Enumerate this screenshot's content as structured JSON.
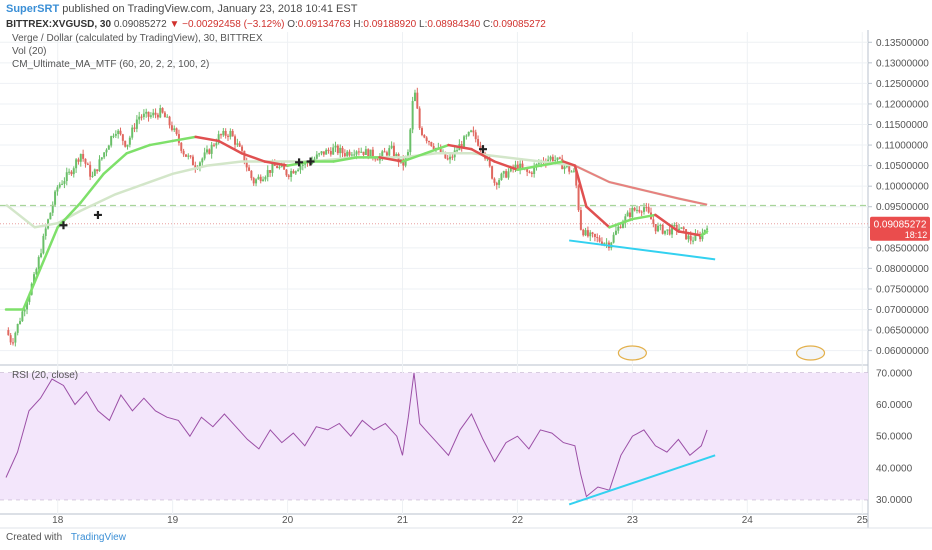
{
  "header": {
    "author": "SuperSRT",
    "published": "published on TradingView.com, January 23, 2018 10:41 EST",
    "symbol": "BITTREX:XVGUSD, 30",
    "last": "0.09085272",
    "change_arrow": "▼",
    "change": "−0.00292458 (−3.12%)",
    "o_label": "O:",
    "o_value": "0.09134763",
    "h_label": "H:",
    "h_value": "0.09188920",
    "l_label": "L:",
    "l_value": "0.08984340",
    "c_label": "C:",
    "c_value": "0.09085272"
  },
  "legend": {
    "line1": "Verge / Dollar (calculated by TradingView), 30, BITTREX",
    "line2": "Vol (20)",
    "line3": "CM_Ultimate_MA_MTF (60, 20, 2, 2, 100, 2)",
    "rsi": "RSI (20, close)"
  },
  "price_label": {
    "value": "0.09085272",
    "countdown": "18:12"
  },
  "footer": {
    "created_with": "Created with",
    "brand": "TradingView"
  },
  "colors": {
    "up_candle": "#6abf69",
    "down_candle": "#e0675f",
    "ma_fast_up": "#7ee06a",
    "ma_fast_down": "#e05050",
    "ma_slow": "#d3e6c9",
    "ma_slow_down": "#e87f7f",
    "trendline": "#33d1f0",
    "rsi_line": "#9b4fa6",
    "rsi_band": "#f3e6fb",
    "price_badge": "#ea4d4d"
  },
  "chart_data": [
    {
      "type": "candlestick",
      "x_unit": "day of January 2018",
      "x_ticks": [
        "18",
        "19",
        "20",
        "21",
        "22",
        "23",
        "24",
        "25"
      ],
      "y_ticks": [
        "0.13500000",
        "0.13000000",
        "0.12500000",
        "0.12000000",
        "0.11500000",
        "0.11000000",
        "0.10500000",
        "0.10000000",
        "0.09500000",
        "0.09000000",
        "0.08500000",
        "0.08000000",
        "0.07500000",
        "0.07000000",
        "0.06500000",
        "0.06000000"
      ],
      "ylim": [
        0.0565,
        0.1375
      ],
      "xlim": [
        17.55,
        25.05
      ],
      "close_path": [
        [
          17.55,
          0.065
        ],
        [
          17.6,
          0.062
        ],
        [
          17.7,
          0.07
        ],
        [
          17.8,
          0.078
        ],
        [
          17.9,
          0.09
        ],
        [
          18.0,
          0.1
        ],
        [
          18.1,
          0.103
        ],
        [
          18.2,
          0.108
        ],
        [
          18.3,
          0.102
        ],
        [
          18.4,
          0.108
        ],
        [
          18.5,
          0.114
        ],
        [
          18.6,
          0.11
        ],
        [
          18.7,
          0.117
        ],
        [
          18.8,
          0.117
        ],
        [
          18.9,
          0.118
        ],
        [
          19.0,
          0.114
        ],
        [
          19.1,
          0.108
        ],
        [
          19.2,
          0.105
        ],
        [
          19.3,
          0.108
        ],
        [
          19.4,
          0.112
        ],
        [
          19.5,
          0.113
        ],
        [
          19.6,
          0.108
        ],
        [
          19.7,
          0.101
        ],
        [
          19.8,
          0.103
        ],
        [
          19.9,
          0.105
        ],
        [
          20.0,
          0.103
        ],
        [
          20.1,
          0.105
        ],
        [
          20.2,
          0.106
        ],
        [
          20.3,
          0.108
        ],
        [
          20.4,
          0.109
        ],
        [
          20.5,
          0.108
        ],
        [
          20.6,
          0.109
        ],
        [
          20.7,
          0.108
        ],
        [
          20.8,
          0.107
        ],
        [
          20.9,
          0.109
        ],
        [
          21.0,
          0.105
        ],
        [
          21.05,
          0.108
        ],
        [
          21.1,
          0.124
        ],
        [
          21.15,
          0.114
        ],
        [
          21.2,
          0.112
        ],
        [
          21.3,
          0.109
        ],
        [
          21.4,
          0.106
        ],
        [
          21.5,
          0.11
        ],
        [
          21.6,
          0.113
        ],
        [
          21.7,
          0.109
        ],
        [
          21.8,
          0.101
        ],
        [
          21.9,
          0.103
        ],
        [
          22.0,
          0.105
        ],
        [
          22.1,
          0.103
        ],
        [
          22.2,
          0.106
        ],
        [
          22.3,
          0.107
        ],
        [
          22.4,
          0.105
        ],
        [
          22.5,
          0.103
        ],
        [
          22.55,
          0.09
        ],
        [
          22.6,
          0.088
        ],
        [
          22.7,
          0.087
        ],
        [
          22.8,
          0.086
        ],
        [
          22.9,
          0.091
        ],
        [
          23.0,
          0.094
        ],
        [
          23.1,
          0.095
        ],
        [
          23.2,
          0.09
        ],
        [
          23.3,
          0.089
        ],
        [
          23.4,
          0.09
        ],
        [
          23.5,
          0.087
        ],
        [
          23.6,
          0.088
        ],
        [
          23.65,
          0.0908
        ]
      ],
      "last_price": 0.09085272,
      "resistance_line": 0.0953,
      "ma_fast": [
        [
          17.55,
          0.07
        ],
        [
          17.7,
          0.07
        ],
        [
          17.85,
          0.08
        ],
        [
          18.0,
          0.09
        ],
        [
          18.2,
          0.096
        ],
        [
          18.4,
          0.103
        ],
        [
          18.6,
          0.108
        ],
        [
          18.8,
          0.11
        ],
        [
          19.0,
          0.111
        ],
        [
          19.2,
          0.112
        ],
        [
          19.4,
          0.111
        ],
        [
          19.6,
          0.108
        ],
        [
          19.8,
          0.106
        ],
        [
          20.0,
          0.105
        ],
        [
          20.2,
          0.106
        ],
        [
          20.4,
          0.106
        ],
        [
          20.6,
          0.107
        ],
        [
          20.8,
          0.107
        ],
        [
          21.0,
          0.106
        ],
        [
          21.2,
          0.108
        ],
        [
          21.4,
          0.11
        ],
        [
          21.6,
          0.109
        ],
        [
          21.8,
          0.106
        ],
        [
          22.0,
          0.104
        ],
        [
          22.2,
          0.105
        ],
        [
          22.4,
          0.106
        ],
        [
          22.5,
          0.105
        ],
        [
          22.6,
          0.095
        ],
        [
          22.8,
          0.09
        ],
        [
          23.0,
          0.092
        ],
        [
          23.2,
          0.093
        ],
        [
          23.4,
          0.089
        ],
        [
          23.6,
          0.088
        ],
        [
          23.65,
          0.089
        ]
      ],
      "ma_slow": [
        [
          17.55,
          0.0955
        ],
        [
          17.8,
          0.09
        ],
        [
          18.0,
          0.091
        ],
        [
          18.2,
          0.094
        ],
        [
          18.5,
          0.098
        ],
        [
          18.8,
          0.101
        ],
        [
          19.0,
          0.103
        ],
        [
          19.3,
          0.105
        ],
        [
          19.6,
          0.106
        ],
        [
          19.9,
          0.106
        ],
        [
          20.2,
          0.106
        ],
        [
          20.6,
          0.107
        ],
        [
          21.0,
          0.107
        ],
        [
          21.3,
          0.108
        ],
        [
          21.6,
          0.108
        ],
        [
          21.9,
          0.107
        ],
        [
          22.2,
          0.106
        ],
        [
          22.5,
          0.105
        ],
        [
          22.8,
          0.101
        ],
        [
          23.1,
          0.099
        ],
        [
          23.4,
          0.097
        ],
        [
          23.65,
          0.0955
        ]
      ],
      "trendline": [
        [
          22.45,
          0.0868
        ],
        [
          23.72,
          0.0822
        ]
      ]
    },
    {
      "type": "line",
      "name": "RSI (20, close)",
      "y_ticks": [
        "70.0000",
        "60.0000",
        "50.0000",
        "40.0000",
        "30.0000"
      ],
      "ylim": [
        25.5,
        71.5
      ],
      "band": [
        30,
        70
      ],
      "values": [
        [
          17.55,
          37
        ],
        [
          17.65,
          45
        ],
        [
          17.75,
          58
        ],
        [
          17.85,
          62
        ],
        [
          17.95,
          68
        ],
        [
          18.05,
          66
        ],
        [
          18.15,
          60
        ],
        [
          18.25,
          64
        ],
        [
          18.35,
          58
        ],
        [
          18.45,
          55
        ],
        [
          18.55,
          63
        ],
        [
          18.65,
          58
        ],
        [
          18.75,
          62
        ],
        [
          18.85,
          58
        ],
        [
          18.95,
          56
        ],
        [
          19.05,
          55
        ],
        [
          19.15,
          50
        ],
        [
          19.25,
          56
        ],
        [
          19.35,
          53
        ],
        [
          19.45,
          57
        ],
        [
          19.55,
          53
        ],
        [
          19.65,
          49
        ],
        [
          19.75,
          46
        ],
        [
          19.85,
          52
        ],
        [
          19.95,
          48
        ],
        [
          20.05,
          51
        ],
        [
          20.15,
          47
        ],
        [
          20.25,
          53
        ],
        [
          20.35,
          52
        ],
        [
          20.45,
          54
        ],
        [
          20.55,
          50
        ],
        [
          20.65,
          55
        ],
        [
          20.75,
          52
        ],
        [
          20.85,
          54
        ],
        [
          20.95,
          50
        ],
        [
          21.0,
          44
        ],
        [
          21.05,
          56
        ],
        [
          21.1,
          70
        ],
        [
          21.15,
          54
        ],
        [
          21.2,
          52
        ],
        [
          21.3,
          48
        ],
        [
          21.4,
          44
        ],
        [
          21.5,
          52
        ],
        [
          21.6,
          57
        ],
        [
          21.7,
          49
        ],
        [
          21.8,
          42
        ],
        [
          21.9,
          48
        ],
        [
          22.0,
          50
        ],
        [
          22.1,
          46
        ],
        [
          22.2,
          52
        ],
        [
          22.3,
          51
        ],
        [
          22.4,
          48
        ],
        [
          22.5,
          47
        ],
        [
          22.55,
          38
        ],
        [
          22.6,
          31
        ],
        [
          22.7,
          34
        ],
        [
          22.8,
          33
        ],
        [
          22.9,
          44
        ],
        [
          23.0,
          50
        ],
        [
          23.1,
          52
        ],
        [
          23.2,
          47
        ],
        [
          23.3,
          45
        ],
        [
          23.4,
          49
        ],
        [
          23.5,
          44
        ],
        [
          23.6,
          47
        ],
        [
          23.65,
          52
        ]
      ],
      "trendline": [
        [
          22.45,
          28.5
        ],
        [
          23.72,
          44
        ]
      ]
    }
  ]
}
